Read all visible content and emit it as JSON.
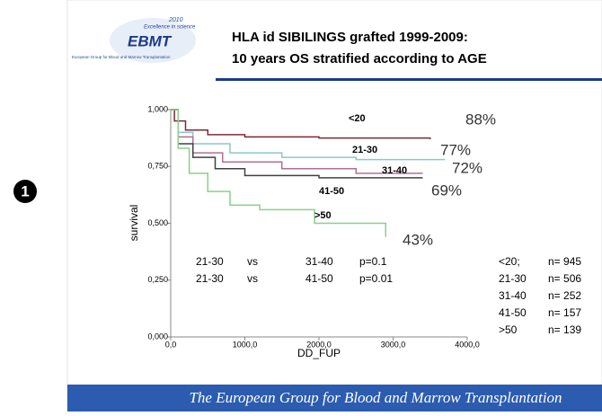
{
  "badge": "1",
  "header": {
    "logo_year": "2010",
    "logo_tagline": "Excellence in science",
    "logo_name": "EBMT",
    "logo_subtitle": "European Group for Blood and Marrow Transplantation",
    "title_lines": [
      "HLA id SIBILINGS grafted 1999-2009:",
      "10 years OS stratified according to AGE"
    ]
  },
  "chart_data": {
    "type": "line",
    "step": true,
    "y_label": "survival",
    "x_label": "DD_FUP",
    "xlim": [
      0,
      4000
    ],
    "ylim": [
      0,
      1
    ],
    "xticks": [
      {
        "value": 0,
        "label": "0,0"
      },
      {
        "value": 1000,
        "label": "1000,0"
      },
      {
        "value": 2000,
        "label": "2000,0"
      },
      {
        "value": 3000,
        "label": "3000,0"
      },
      {
        "value": 4000,
        "label": "4000,0"
      }
    ],
    "yticks": [
      {
        "value": 0,
        "label": "0,000"
      },
      {
        "value": 0.25,
        "label": "0,250"
      },
      {
        "value": 0.5,
        "label": "0,500"
      },
      {
        "value": 0.75,
        "label": "0,750"
      },
      {
        "value": 1,
        "label": "1,000"
      }
    ],
    "series": [
      {
        "name": "<20",
        "color": "#7a2a3a",
        "end_label": "88%",
        "x": [
          0,
          50,
          200,
          500,
          1000,
          2000,
          3500
        ],
        "values": [
          1,
          0.95,
          0.91,
          0.89,
          0.88,
          0.875,
          0.87
        ]
      },
      {
        "name": "21-30",
        "color": "#8cc8c8",
        "end_label": "77%",
        "x": [
          0,
          100,
          300,
          800,
          1500,
          2500,
          3700
        ],
        "values": [
          1,
          0.9,
          0.85,
          0.81,
          0.79,
          0.78,
          0.78
        ]
      },
      {
        "name": "31-40",
        "color": "#b07090",
        "end_label": "72%",
        "x": [
          0,
          100,
          300,
          700,
          1500,
          2500,
          3400
        ],
        "values": [
          1,
          0.88,
          0.81,
          0.77,
          0.74,
          0.72,
          0.72
        ]
      },
      {
        "name": "41-50",
        "color": "#404040",
        "end_label": "69%",
        "x": [
          0,
          100,
          300,
          600,
          1000,
          2000,
          3400
        ],
        "values": [
          1,
          0.85,
          0.79,
          0.74,
          0.71,
          0.7,
          0.7
        ]
      },
      {
        "name": ">50",
        "color": "#8ccf8c",
        "end_label": "43%",
        "x": [
          0,
          100,
          250,
          500,
          800,
          1200,
          1940,
          2900
        ],
        "values": [
          1,
          0.83,
          0.72,
          0.64,
          0.58,
          0.56,
          0.5,
          0.44
        ]
      }
    ],
    "comparisons": [
      [
        "21-30",
        "vs",
        "31-40",
        "p=0.1"
      ],
      [
        "21-30",
        "vs",
        "41-50",
        "p=0.01"
      ]
    ],
    "counts": [
      [
        "<20;",
        "n= 945"
      ],
      [
        "21-30",
        "n= 506"
      ],
      [
        "31-40",
        "n= 252"
      ],
      [
        "41-50",
        "n= 157"
      ],
      [
        ">50",
        "n=  139"
      ]
    ]
  },
  "footer": "The European Group for Blood and Marrow Transplantation"
}
